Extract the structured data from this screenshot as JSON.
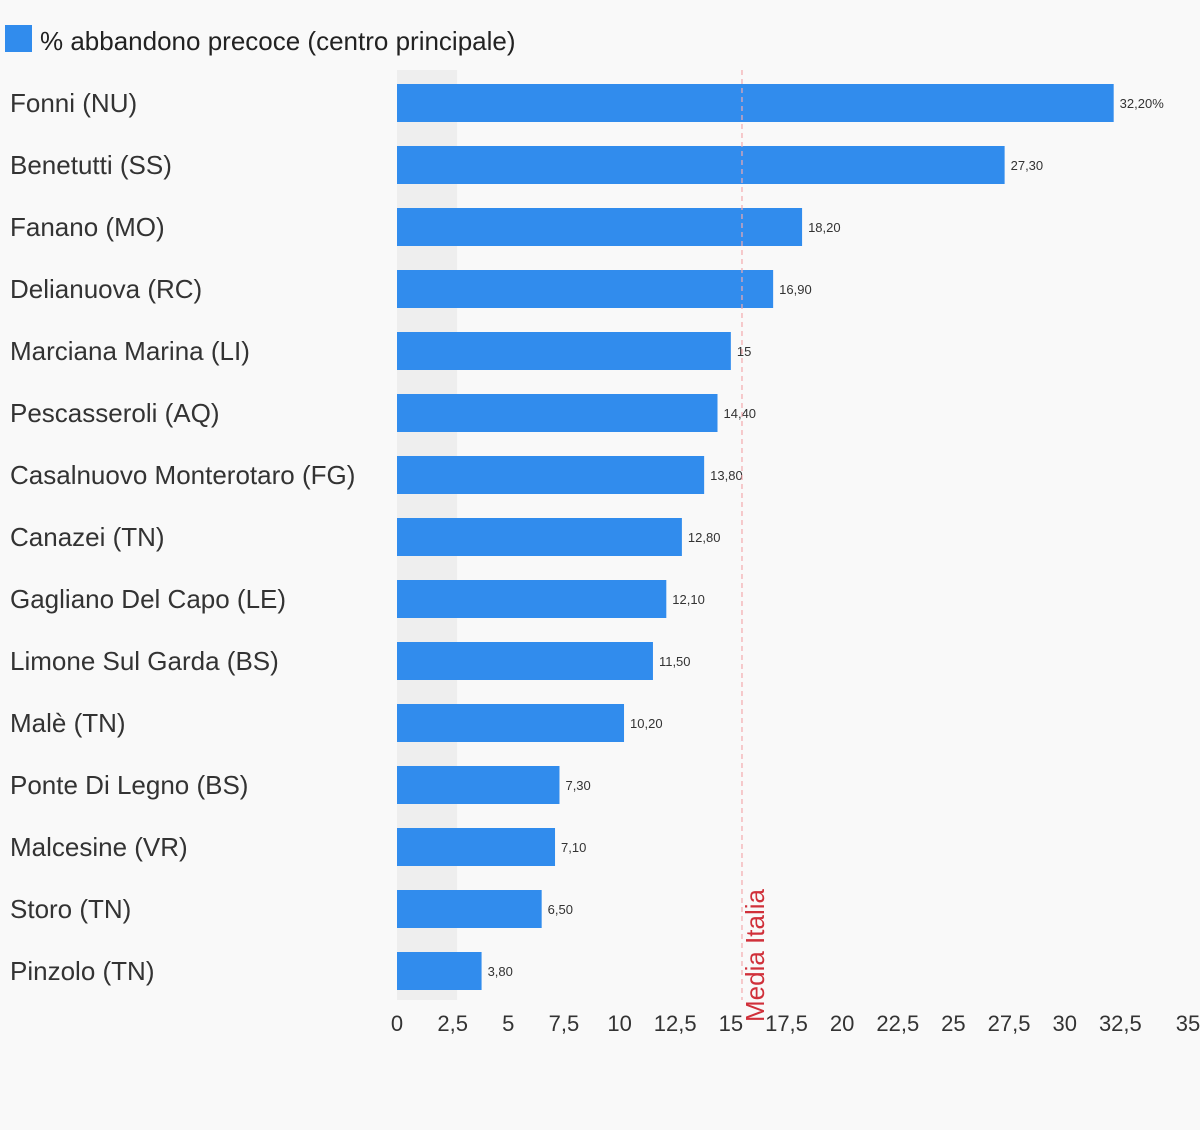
{
  "chart_data": {
    "type": "bar",
    "orientation": "horizontal",
    "categories": [
      "Fonni (NU)",
      "Benetutti (SS)",
      "Fanano (MO)",
      "Delianuova (RC)",
      "Marciana Marina (LI)",
      "Pescasseroli (AQ)",
      "Casalnuovo Monterotaro (FG)",
      "Canazei (TN)",
      "Gagliano Del Capo (LE)",
      "Limone Sul Garda (BS)",
      "Malè (TN)",
      "Ponte Di Legno (BS)",
      "Malcesine (VR)",
      "Storo (TN)",
      "Pinzolo (TN)"
    ],
    "series": [
      {
        "name": "% abbandono precoce (centro principale)",
        "color": "#318ced",
        "values": [
          32.2,
          27.3,
          18.2,
          16.9,
          15,
          14.4,
          13.8,
          12.8,
          12.1,
          11.5,
          10.2,
          7.3,
          7.1,
          6.5,
          3.8
        ],
        "value_labels": [
          "32,20%",
          "27,30",
          "18,20",
          "16,90",
          "15",
          "14,40",
          "13,80",
          "12,80",
          "12,10",
          "11,50",
          "10,20",
          "7,30",
          "7,10",
          "6,50",
          "3,80"
        ]
      }
    ],
    "xlim": [
      0,
      35
    ],
    "x_ticks": [
      0,
      2.5,
      5,
      7.5,
      10,
      12.5,
      15,
      17.5,
      20,
      22.5,
      25,
      27.5,
      30,
      32.5,
      35
    ],
    "x_tick_labels": [
      "0",
      "2,5",
      "5",
      "7,5",
      "10",
      "12,5",
      "15",
      "17,5",
      "20",
      "22,5",
      "25",
      "27,5",
      "30",
      "32,5",
      "35"
    ],
    "reference_line": {
      "label": "Media Italia",
      "value": 15.5,
      "color": "#d0303a"
    },
    "shaded_band": {
      "from": 0,
      "to": 2.7,
      "color": "#eeeeee"
    },
    "legend": {
      "position": "top-left"
    },
    "grid": false,
    "title": "",
    "xlabel": "",
    "ylabel": ""
  }
}
